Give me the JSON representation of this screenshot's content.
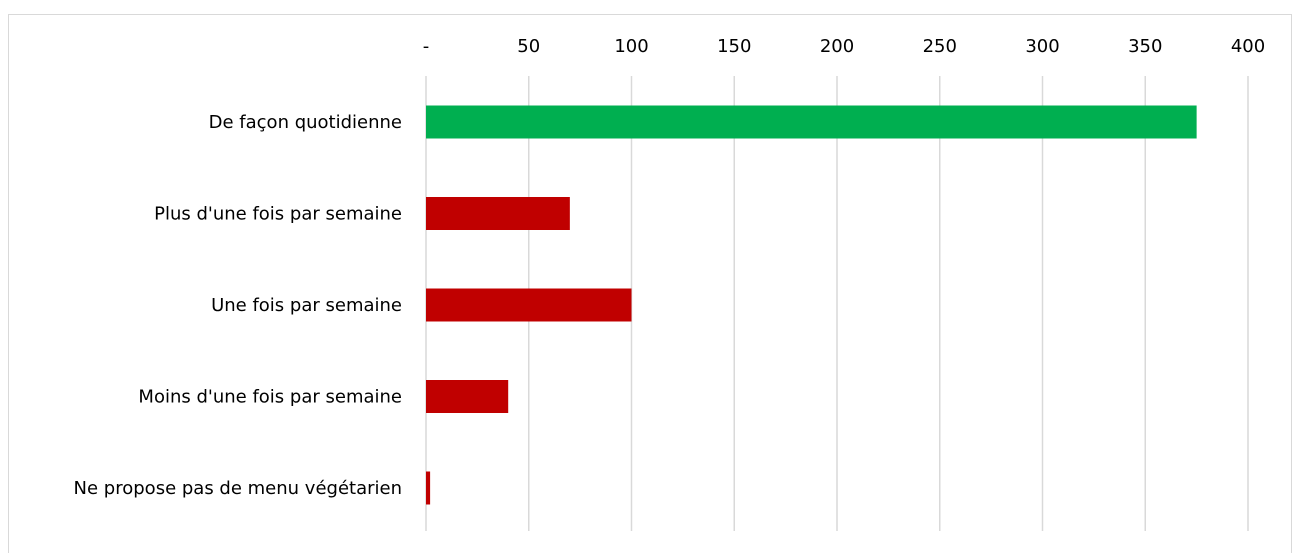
{
  "chart_data": {
    "type": "bar",
    "orientation": "horizontal",
    "title": "",
    "xlabel": "",
    "ylabel": "",
    "categories": [
      "De façon quotidienne",
      "Plus d'une fois par semaine",
      "Une fois par semaine",
      "Moins d'une fois par semaine",
      "Ne propose pas de menu végétarien"
    ],
    "values": [
      375,
      70,
      100,
      40,
      2
    ],
    "bar_colors": [
      "#00AF50",
      "#C00000",
      "#C00000",
      "#C00000",
      "#C00000"
    ],
    "xlim": [
      0,
      400
    ],
    "ticks": [
      0,
      50,
      100,
      150,
      200,
      250,
      300,
      350,
      400
    ],
    "tick_labels": [
      "-",
      "50",
      "100",
      "150",
      "200",
      "250",
      "300",
      "350",
      "400"
    ],
    "grid": "vertical",
    "axis_position": "top",
    "legend": "none"
  }
}
